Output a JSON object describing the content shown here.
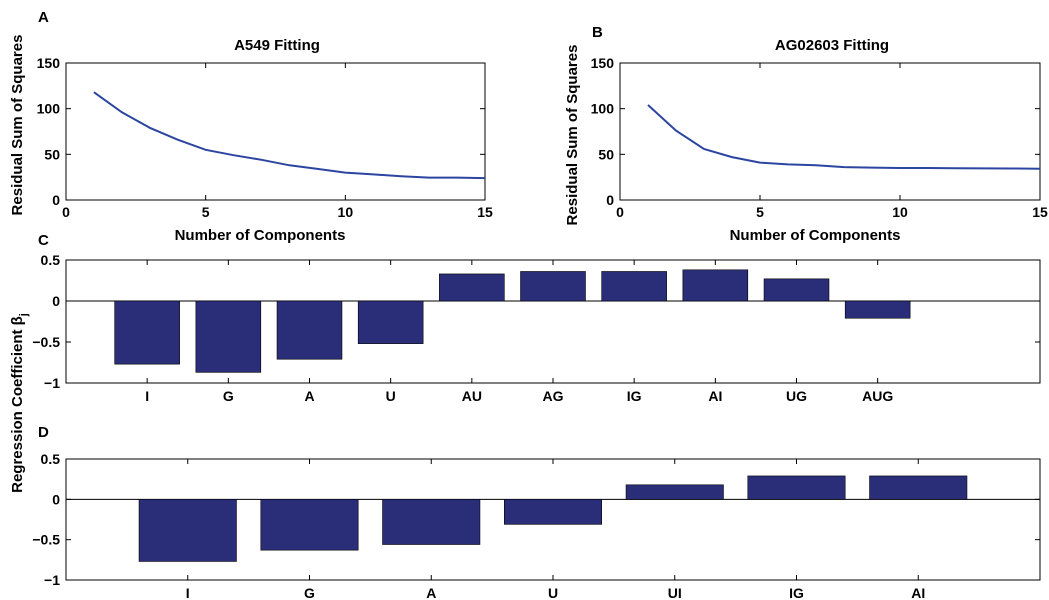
{
  "figure": {
    "shared_ylabel": "Regression Coefficient β",
    "shared_ylabel_sub": "j"
  },
  "chart_data": [
    {
      "panel": "A",
      "type": "line",
      "title": "A549 Fitting",
      "xlabel": "Number of Components",
      "ylabel": "Residual Sum of Squares",
      "xlim": [
        0,
        15
      ],
      "ylim": [
        0,
        150
      ],
      "xticks": [
        0,
        5,
        10,
        15
      ],
      "yticks": [
        0,
        50,
        100,
        150
      ],
      "color": "#2b45a0",
      "x": [
        1,
        2,
        3,
        4,
        5,
        6,
        7,
        8,
        9,
        10,
        11,
        12,
        13,
        14,
        15
      ],
      "y": [
        118,
        96,
        79,
        66,
        55,
        49,
        44,
        38,
        34,
        30,
        28,
        26,
        24.5,
        24.5,
        24
      ]
    },
    {
      "panel": "B",
      "type": "line",
      "title": "AG02603 Fitting",
      "xlabel": "Number of Components",
      "ylabel": "Residual Sum of Squares",
      "xlim": [
        0,
        15
      ],
      "ylim": [
        0,
        150
      ],
      "xticks": [
        0,
        5,
        10,
        15
      ],
      "yticks": [
        0,
        50,
        100,
        150
      ],
      "color": "#2b45a0",
      "x": [
        1,
        2,
        3,
        4,
        5,
        6,
        7,
        8,
        9,
        10,
        11,
        12,
        13,
        14,
        15
      ],
      "y": [
        104,
        76,
        56,
        47,
        41,
        39,
        38,
        36,
        35.5,
        35,
        35,
        34.8,
        34.6,
        34.5,
        34.3
      ]
    },
    {
      "panel": "C",
      "type": "bar",
      "xlim": [
        0,
        12
      ],
      "ylim": [
        -1,
        0.5
      ],
      "yticks": [
        -1,
        -0.5,
        0,
        0.5
      ],
      "ytick_labels": [
        "−1",
        "−0.5",
        "0",
        "0.5"
      ],
      "color": "#2a2e78",
      "categories": [
        "I",
        "G",
        "A",
        "U",
        "AU",
        "AG",
        "IG",
        "AI",
        "UG",
        "AUG"
      ],
      "values": [
        -0.77,
        -0.87,
        -0.71,
        -0.52,
        0.33,
        0.36,
        0.36,
        0.38,
        0.27,
        -0.21
      ]
    },
    {
      "panel": "D",
      "type": "bar",
      "xlim": [
        0,
        8
      ],
      "ylim": [
        -1,
        0.5
      ],
      "yticks": [
        -1,
        -0.5,
        0,
        0.5
      ],
      "ytick_labels": [
        "−1",
        "−0.5",
        "0",
        "0.5"
      ],
      "color": "#2a2e78",
      "categories": [
        "I",
        "G",
        "A",
        "U",
        "UI",
        "IG",
        "AI"
      ],
      "values": [
        -0.77,
        -0.63,
        -0.56,
        -0.31,
        0.18,
        0.29,
        0.29
      ]
    }
  ]
}
